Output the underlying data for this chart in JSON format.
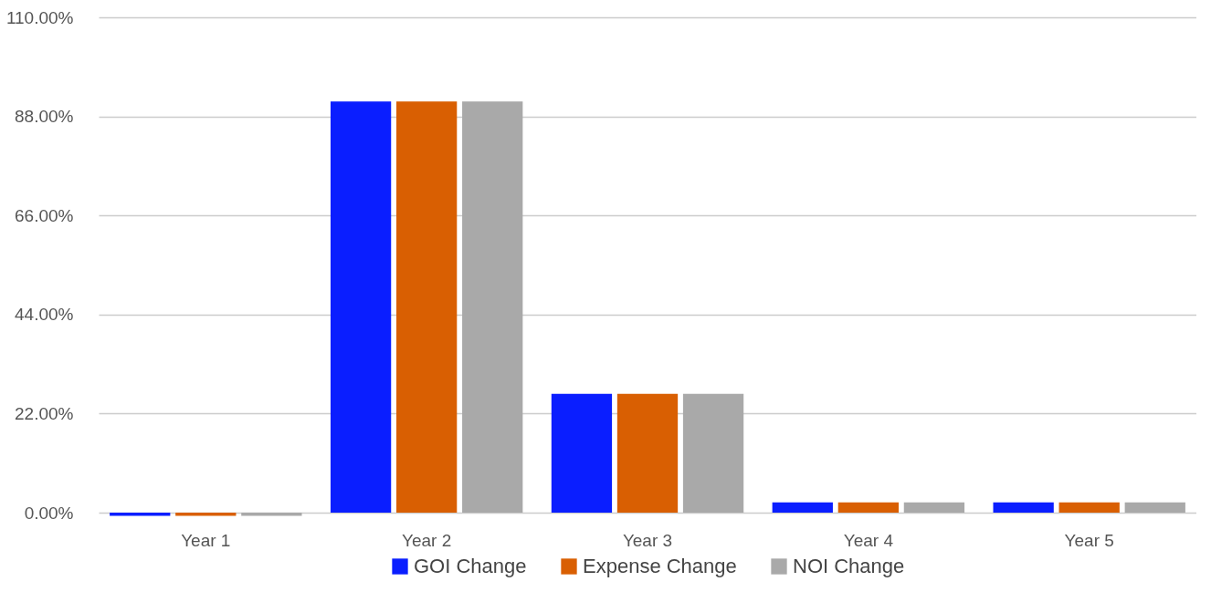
{
  "chart_data": {
    "type": "bar",
    "categories": [
      "Year 1",
      "Year 2",
      "Year 3",
      "Year 4",
      "Year 5"
    ],
    "series": [
      {
        "name": "GOI Change",
        "color": "#0a1eff",
        "values": [
          -0.7,
          91.3,
          26.4,
          2.3,
          2.3
        ]
      },
      {
        "name": "Expense Change",
        "color": "#d95f02",
        "values": [
          -0.7,
          91.3,
          26.4,
          2.3,
          2.3
        ]
      },
      {
        "name": "NOI Change",
        "color": "#a9a9a9",
        "values": [
          -0.7,
          91.3,
          26.4,
          2.3,
          2.3
        ]
      }
    ],
    "ylim": [
      -1,
      110
    ],
    "yticks": [
      {
        "value": 0,
        "label": "0.00%"
      },
      {
        "value": 22,
        "label": "22.00%"
      },
      {
        "value": 44,
        "label": "44.00%"
      },
      {
        "value": 66,
        "label": "66.00%"
      },
      {
        "value": 88,
        "label": "88.00%"
      },
      {
        "value": 110,
        "label": "110.00%"
      }
    ],
    "grid": "y",
    "legend": "bottom"
  }
}
